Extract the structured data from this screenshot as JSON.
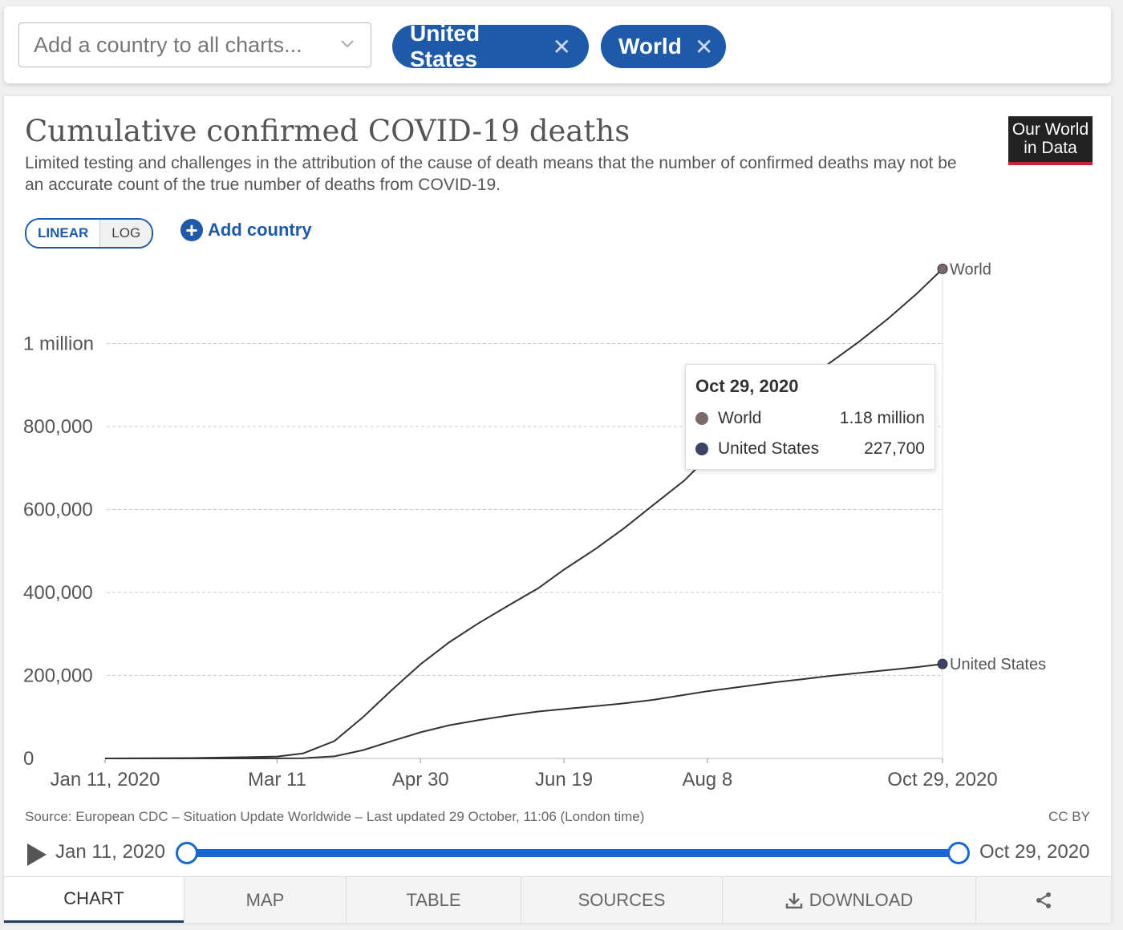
{
  "selector": {
    "placeholder": "Add a country to all charts...",
    "chips": [
      {
        "label": "United States",
        "remove": "✕"
      },
      {
        "label": "World",
        "remove": "✕"
      }
    ]
  },
  "header": {
    "title": "Cumulative confirmed COVID-19 deaths",
    "subtitle": "Limited testing and challenges in the attribution of the cause of death means that the number of confirmed deaths may not be an accurate count of the true number of deaths from COVID-19.",
    "logo_line1": "Our World",
    "logo_line2": "in Data"
  },
  "controls": {
    "linear": "LINEAR",
    "log": "LOG",
    "add_country": "Add country"
  },
  "colors": {
    "accent": "#1f5aa8",
    "world": "#7a6a6a",
    "us": "#3b4466",
    "slider": "#1a66d2"
  },
  "tooltip": {
    "date": "Oct 29, 2020",
    "rows": [
      {
        "name": "World",
        "value": "1.18 million"
      },
      {
        "name": "United States",
        "value": "227,700"
      }
    ]
  },
  "chart_data": {
    "type": "line",
    "title": "Cumulative confirmed COVID-19 deaths",
    "ylim": [
      0,
      1200000
    ],
    "y_ticks": [
      {
        "value": 0,
        "label": "0"
      },
      {
        "value": 200000,
        "label": "200,000"
      },
      {
        "value": 400000,
        "label": "400,000"
      },
      {
        "value": 600000,
        "label": "600,000"
      },
      {
        "value": 800000,
        "label": "800,000"
      },
      {
        "value": 1000000,
        "label": "1 million"
      }
    ],
    "x_ticks": [
      "Jan 11, 2020",
      "Mar 11",
      "Apr 30",
      "Jun 19",
      "Aug 8",
      "Oct 29, 2020"
    ],
    "x_range": [
      "2020-01-11",
      "2020-10-29"
    ],
    "grid": true,
    "series": [
      {
        "name": "World",
        "color_key": "world",
        "points": [
          [
            "2020-01-11",
            0
          ],
          [
            "2020-02-10",
            900
          ],
          [
            "2020-03-01",
            3000
          ],
          [
            "2020-03-11",
            4600
          ],
          [
            "2020-03-20",
            12000
          ],
          [
            "2020-03-31",
            42000
          ],
          [
            "2020-04-10",
            100000
          ],
          [
            "2020-04-20",
            165000
          ],
          [
            "2020-04-30",
            227000
          ],
          [
            "2020-05-10",
            280000
          ],
          [
            "2020-05-20",
            325000
          ],
          [
            "2020-05-31",
            370000
          ],
          [
            "2020-06-10",
            410000
          ],
          [
            "2020-06-19",
            455000
          ],
          [
            "2020-06-30",
            505000
          ],
          [
            "2020-07-10",
            555000
          ],
          [
            "2020-07-20",
            610000
          ],
          [
            "2020-07-31",
            670000
          ],
          [
            "2020-08-08",
            725000
          ],
          [
            "2020-08-20",
            790000
          ],
          [
            "2020-08-31",
            850000
          ],
          [
            "2020-09-10",
            905000
          ],
          [
            "2020-09-20",
            955000
          ],
          [
            "2020-09-30",
            1005000
          ],
          [
            "2020-10-10",
            1060000
          ],
          [
            "2020-10-20",
            1120000
          ],
          [
            "2020-10-29",
            1180000
          ]
        ]
      },
      {
        "name": "United States",
        "color_key": "us",
        "points": [
          [
            "2020-01-11",
            0
          ],
          [
            "2020-03-01",
            0
          ],
          [
            "2020-03-20",
            500
          ],
          [
            "2020-03-31",
            5000
          ],
          [
            "2020-04-10",
            20000
          ],
          [
            "2020-04-20",
            42000
          ],
          [
            "2020-04-30",
            63000
          ],
          [
            "2020-05-10",
            80000
          ],
          [
            "2020-05-20",
            92000
          ],
          [
            "2020-05-31",
            104000
          ],
          [
            "2020-06-10",
            113000
          ],
          [
            "2020-06-19",
            119000
          ],
          [
            "2020-06-30",
            126000
          ],
          [
            "2020-07-10",
            133000
          ],
          [
            "2020-07-20",
            141000
          ],
          [
            "2020-07-31",
            153000
          ],
          [
            "2020-08-08",
            162000
          ],
          [
            "2020-08-20",
            173000
          ],
          [
            "2020-08-31",
            183000
          ],
          [
            "2020-09-10",
            191000
          ],
          [
            "2020-09-20",
            199000
          ],
          [
            "2020-09-30",
            206000
          ],
          [
            "2020-10-10",
            213000
          ],
          [
            "2020-10-20",
            220000
          ],
          [
            "2020-10-29",
            227700
          ]
        ]
      }
    ],
    "series_end_labels": [
      "World",
      "United States"
    ]
  },
  "footer": {
    "source": "Source: European CDC – Situation Update Worldwide – Last updated 29 October, 11:06 (London time)",
    "license": "CC BY"
  },
  "timeline": {
    "start": "Jan 11, 2020",
    "end": "Oct 29, 2020"
  },
  "tabs": [
    {
      "label": "CHART"
    },
    {
      "label": "MAP"
    },
    {
      "label": "TABLE"
    },
    {
      "label": "SOURCES"
    },
    {
      "label": "DOWNLOAD"
    }
  ]
}
